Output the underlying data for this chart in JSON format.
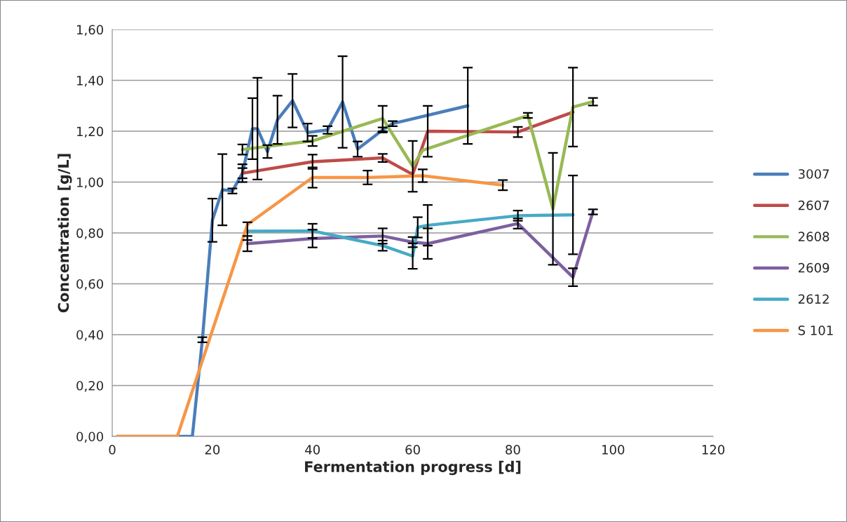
{
  "chart_data": {
    "type": "line",
    "xlabel": "Fermentation progress [d]",
    "ylabel": "Concentration [g/L]",
    "xlim": [
      0,
      120
    ],
    "xticks": [
      0,
      20,
      40,
      60,
      80,
      100,
      120
    ],
    "ylim": [
      0,
      1.6
    ],
    "yticks": [
      {
        "value": 0,
        "label": "0,00"
      },
      {
        "value": 0.2,
        "label": "0,20"
      },
      {
        "value": 0.4,
        "label": "0,40"
      },
      {
        "value": 0.6,
        "label": "0,60"
      },
      {
        "value": 0.8,
        "label": "0,80"
      },
      {
        "value": 1.0,
        "label": "1,00"
      },
      {
        "value": 1.2,
        "label": "1,20"
      },
      {
        "value": 1.4,
        "label": "1,40"
      },
      {
        "value": 1.6,
        "label": "1,60"
      }
    ],
    "grid": "y",
    "legend": "right",
    "marker": "none",
    "line_style": "solid",
    "series": [
      {
        "name": "3007",
        "color": "#4a7ebb",
        "x": [
          1,
          16,
          18,
          20,
          22,
          24,
          26,
          28,
          29,
          31,
          33,
          36,
          39,
          43,
          46,
          49,
          54,
          56,
          71
        ],
        "values": [
          0,
          0,
          0.38,
          0.85,
          0.97,
          0.965,
          1.035,
          1.21,
          1.21,
          1.12,
          1.245,
          1.32,
          1.195,
          1.205,
          1.315,
          1.13,
          1.205,
          1.23,
          1.3
        ],
        "errors": [
          null,
          null,
          0.01,
          0.085,
          0.14,
          0.01,
          0.02,
          0.12,
          0.2,
          0.025,
          0.095,
          0.105,
          0.035,
          0.015,
          0.18,
          0.03,
          0.01,
          0.01,
          0.15
        ]
      },
      {
        "name": "2607",
        "color": "#be4b48",
        "x": [
          26,
          40,
          54,
          60,
          63,
          81,
          92
        ],
        "values": [
          1.035,
          1.08,
          1.095,
          1.03,
          1.2,
          1.197,
          1.275
        ],
        "errors": [
          0.035,
          0.028,
          0.016,
          null,
          0.1,
          0.02,
          null
        ]
      },
      {
        "name": "2608",
        "color": "#98b954",
        "x": [
          26,
          40,
          54,
          60,
          62,
          83,
          88,
          92,
          96
        ],
        "values": [
          1.128,
          1.162,
          1.25,
          1.062,
          1.125,
          1.262,
          0.895,
          1.295,
          1.316
        ],
        "errors": [
          0.02,
          0.02,
          0.05,
          0.1,
          null,
          0.01,
          0.22,
          0.155,
          0.015
        ]
      },
      {
        "name": "2609",
        "color": "#7d60a0",
        "x": [
          27,
          40,
          54,
          60,
          63,
          81,
          92,
          96
        ],
        "values": [
          0.758,
          0.778,
          0.788,
          0.764,
          0.758,
          0.837,
          0.626,
          0.883
        ],
        "errors": [
          0.03,
          0.035,
          0.03,
          0.02,
          0.06,
          0.02,
          0.035,
          0.01
        ]
      },
      {
        "name": "2612",
        "color": "#46aac5",
        "x": [
          27,
          40,
          54,
          60,
          61,
          63,
          81,
          92
        ],
        "values": [
          0.807,
          0.808,
          0.75,
          0.709,
          0.822,
          0.83,
          0.868,
          0.871
        ],
        "errors": [
          0.035,
          0.028,
          0.02,
          0.05,
          0.04,
          0.08,
          0.02,
          0.155
        ]
      },
      {
        "name": "S 101",
        "color": "#f79646",
        "x": [
          1,
          13,
          27,
          40,
          51,
          62,
          78
        ],
        "values": [
          0,
          0,
          0.833,
          1.018,
          1.018,
          1.025,
          0.988
        ],
        "errors": [
          null,
          null,
          null,
          0.04,
          0.027,
          0.025,
          0.02
        ]
      }
    ]
  }
}
